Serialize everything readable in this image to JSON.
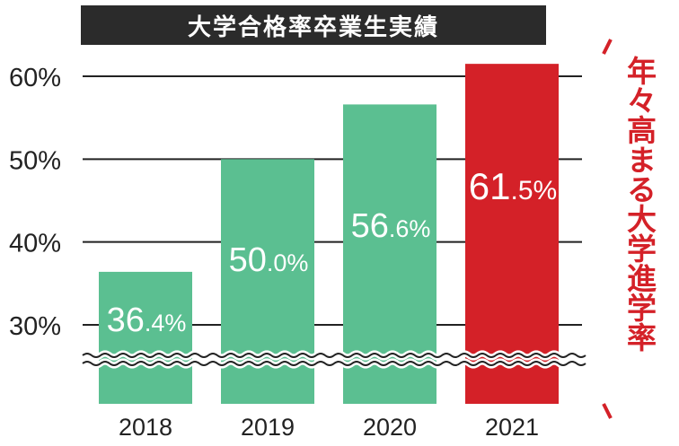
{
  "chart_data": {
    "type": "bar",
    "title": "大学合格率卒業生実績",
    "categories": [
      "2018",
      "2019",
      "2020",
      "2021"
    ],
    "values": [
      36.4,
      50.0,
      56.6,
      61.5
    ],
    "value_labels": [
      {
        "main": "36",
        "dec": ".4",
        "unit": "%"
      },
      {
        "main": "50",
        "dec": ".0",
        "unit": "%"
      },
      {
        "main": "56",
        "dec": ".6",
        "unit": "%"
      },
      {
        "main": "61",
        "dec": ".5",
        "unit": "%"
      }
    ],
    "ylim": [
      25,
      62
    ],
    "y_ticks": [
      30,
      40,
      50,
      60
    ],
    "y_tick_labels": [
      "30%",
      "40%",
      "50%",
      "60%"
    ],
    "axis_break": true,
    "grid": true,
    "colors": {
      "default_bar": "#5bbf91",
      "highlight_bar": "#d42128",
      "grid": "#222222",
      "text": "#222222",
      "label_fill_green": "#ffffff",
      "label_fill_red": "#ffffff"
    },
    "highlight_index": 3,
    "annotation": "年々高まる大学進学率"
  }
}
